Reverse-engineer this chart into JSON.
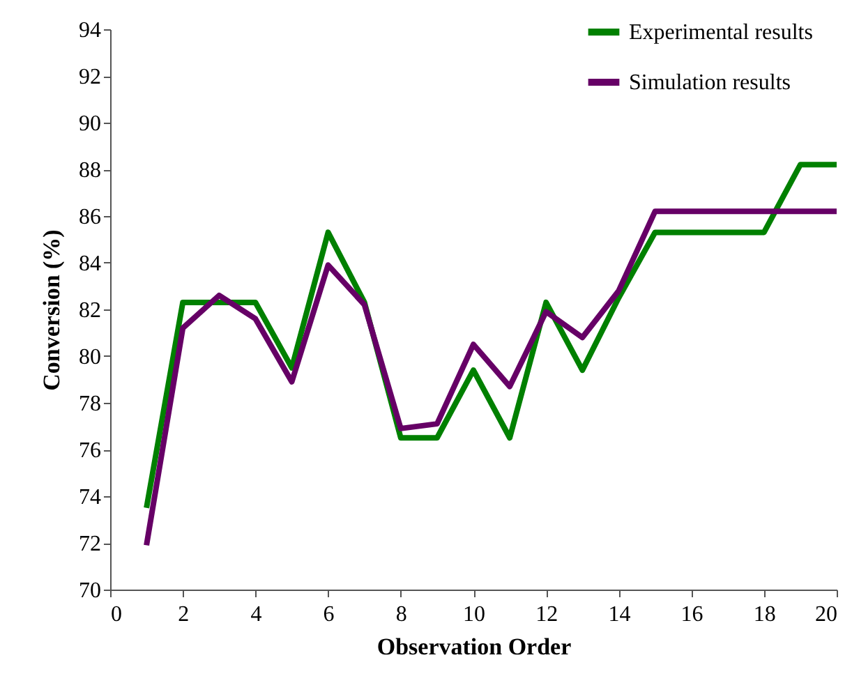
{
  "chart_data": {
    "type": "line",
    "xlabel": "Observation Order",
    "ylabel": "Conversion (%)",
    "x": [
      1,
      2,
      3,
      4,
      5,
      6,
      7,
      8,
      9,
      10,
      11,
      12,
      13,
      14,
      15,
      16,
      17,
      18,
      19,
      20
    ],
    "xlim": [
      0,
      20
    ],
    "xticks": [
      0,
      2,
      4,
      6,
      8,
      10,
      12,
      14,
      16,
      18,
      20
    ],
    "ylim": [
      70,
      94
    ],
    "yticks": [
      70,
      72,
      74,
      76,
      78,
      80,
      82,
      84,
      86,
      88,
      90,
      92,
      94
    ],
    "grid": false,
    "legend": "top right",
    "marker": "none",
    "line_style": "solid",
    "series": [
      {
        "name": "Experimental results",
        "color": "#008000",
        "values": [
          73.5,
          82.3,
          82.3,
          82.3,
          79.5,
          85.3,
          82.3,
          76.5,
          76.5,
          79.4,
          76.5,
          82.3,
          79.4,
          82.5,
          85.3,
          85.3,
          85.3,
          85.3,
          88.2,
          88.2
        ]
      },
      {
        "name": "Simulation results",
        "color": "#660066",
        "values": [
          71.9,
          81.2,
          82.6,
          81.6,
          78.9,
          83.9,
          82.2,
          76.9,
          77.1,
          80.5,
          78.7,
          81.9,
          80.8,
          82.8,
          86.2,
          86.2,
          86.2,
          86.2,
          86.2,
          86.2
        ]
      }
    ]
  }
}
